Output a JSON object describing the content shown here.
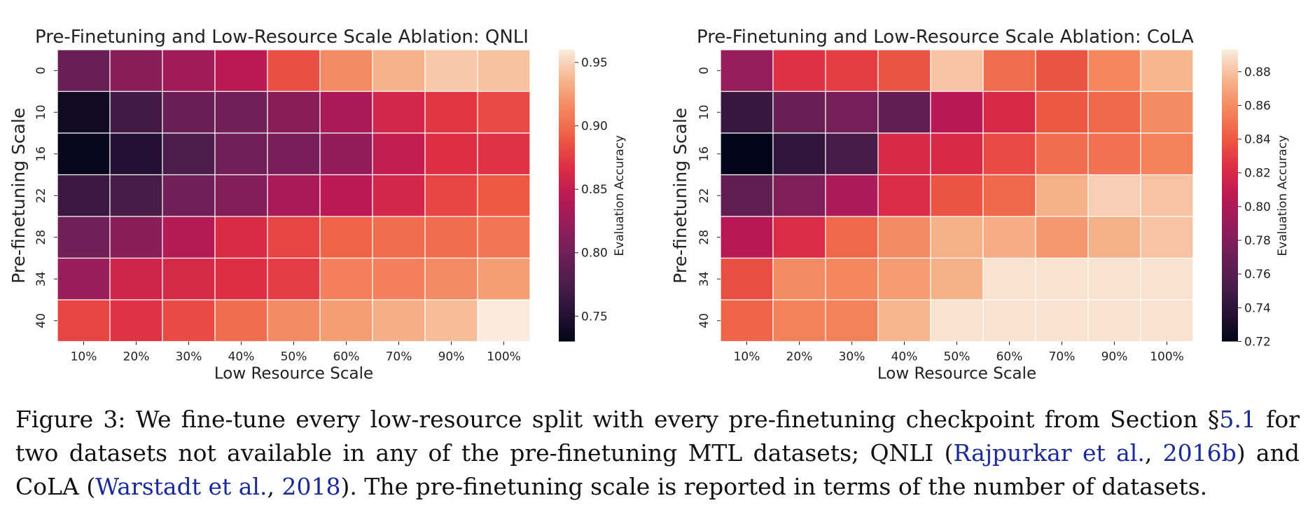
{
  "chart_data": [
    {
      "type": "heatmap",
      "title": "Pre-Finetuning and Low-Resource Scale Ablation: QNLI",
      "xlabel": "Low Resource Scale",
      "ylabel": "Pre-finetuning Scale",
      "x_categories": [
        "10%",
        "20%",
        "30%",
        "40%",
        "50%",
        "60%",
        "70%",
        "90%",
        "100%"
      ],
      "y_categories": [
        "0",
        "10",
        "16",
        "22",
        "28",
        "34",
        "40"
      ],
      "values": [
        [
          0.795,
          0.815,
          0.83,
          0.845,
          0.885,
          0.915,
          0.935,
          0.945,
          0.942
        ],
        [
          0.738,
          0.77,
          0.795,
          0.8,
          0.815,
          0.835,
          0.86,
          0.872,
          0.883
        ],
        [
          0.733,
          0.75,
          0.775,
          0.8,
          0.805,
          0.82,
          0.85,
          0.868,
          0.87
        ],
        [
          0.765,
          0.773,
          0.8,
          0.81,
          0.835,
          0.845,
          0.86,
          0.88,
          0.89
        ],
        [
          0.8,
          0.815,
          0.84,
          0.865,
          0.88,
          0.895,
          0.9,
          0.9,
          0.905
        ],
        [
          0.825,
          0.858,
          0.862,
          0.868,
          0.875,
          0.91,
          0.91,
          0.915,
          0.925
        ],
        [
          0.88,
          0.87,
          0.883,
          0.9,
          0.915,
          0.925,
          0.933,
          0.94,
          0.96
        ]
      ],
      "colorbar": {
        "label": "Evaluation Accuracy",
        "min": 0.73,
        "max": 0.96,
        "ticks": [
          "0.75",
          "0.80",
          "0.85",
          "0.90",
          "0.95"
        ]
      },
      "colormap": "rocket",
      "cell_grid": true
    },
    {
      "type": "heatmap",
      "title": "Pre-Finetuning and Low-Resource Scale Ablation: CoLA",
      "xlabel": "Low Resource Scale",
      "ylabel": "Pre-finetuning Scale",
      "x_categories": [
        "10%",
        "20%",
        "30%",
        "40%",
        "50%",
        "60%",
        "70%",
        "90%",
        "100%"
      ],
      "y_categories": [
        "0",
        "10",
        "16",
        "22",
        "28",
        "34",
        "40"
      ],
      "values": [
        [
          0.79,
          0.825,
          0.83,
          0.838,
          0.88,
          0.848,
          0.838,
          0.858,
          0.876
        ],
        [
          0.745,
          0.768,
          0.775,
          0.765,
          0.805,
          0.82,
          0.84,
          0.846,
          0.86
        ],
        [
          0.72,
          0.742,
          0.752,
          0.82,
          0.82,
          0.834,
          0.848,
          0.85,
          0.856
        ],
        [
          0.765,
          0.78,
          0.8,
          0.822,
          0.838,
          0.846,
          0.874,
          0.884,
          0.88
        ],
        [
          0.805,
          0.822,
          0.846,
          0.86,
          0.874,
          0.872,
          0.864,
          0.874,
          0.88
        ],
        [
          0.836,
          0.86,
          0.858,
          0.866,
          0.874,
          0.89,
          0.89,
          0.89,
          0.89
        ],
        [
          0.845,
          0.856,
          0.856,
          0.876,
          0.89,
          0.89,
          0.89,
          0.89,
          0.89
        ]
      ],
      "colorbar": {
        "label": "Evaluation Accuracy",
        "min": 0.72,
        "max": 0.893,
        "ticks": [
          "0.72",
          "0.74",
          "0.76",
          "0.78",
          "0.80",
          "0.82",
          "0.84",
          "0.86",
          "0.88"
        ]
      },
      "colormap": "rocket",
      "cell_grid": true
    }
  ],
  "caption": {
    "lead": "Figure 3: We fine-tune every low-resource split with every pre-finetuning checkpoint from Section §",
    "section_ref": "5.1",
    "mid1": " for two datasets not available in any of the pre-finetuning MTL datasets; QNLI (",
    "cite1_author": "Rajpurkar et al.",
    "sep1": ", ",
    "cite1_year": "2016b",
    "mid2": ") and CoLA (",
    "cite2_author": "Warstadt et al.",
    "sep2": ", ",
    "cite2_year": "2018",
    "tail": "). The pre-finetuning scale is reported in terms of the number of datasets."
  }
}
